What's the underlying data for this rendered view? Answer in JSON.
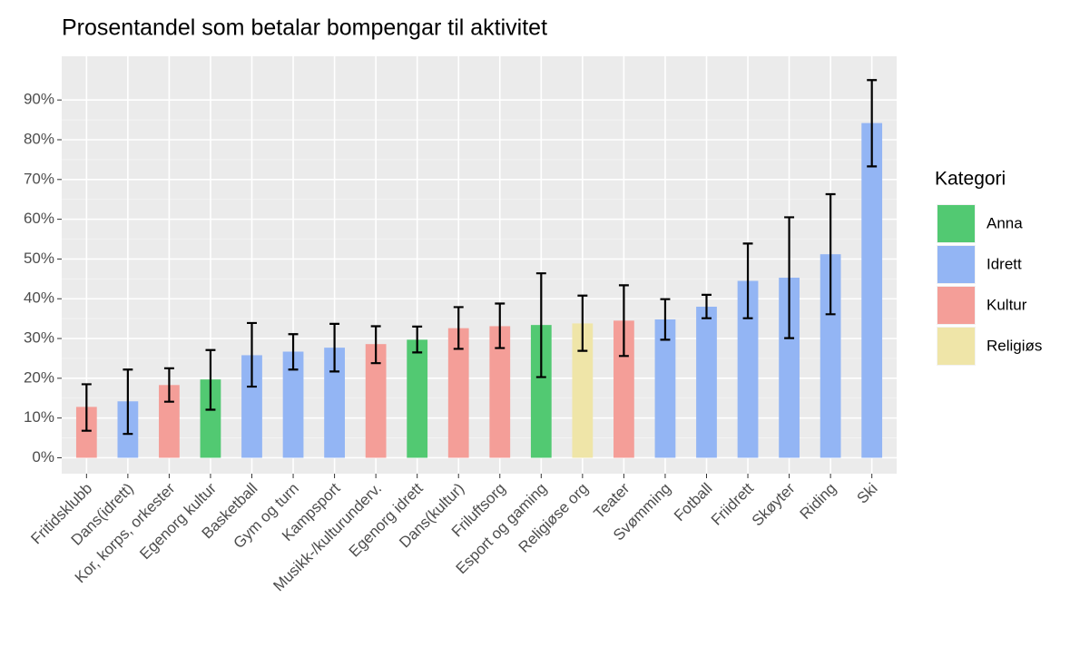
{
  "chart_data": {
    "type": "bar",
    "title": "Prosentandel som betalar bompengar til aktivitet",
    "categories": [
      "Fritidsklubb",
      "Dans(idrett)",
      "Kor, korps, orkester",
      "Egenorg kultur",
      "Basketball",
      "Gym og turn",
      "Kampsport",
      "Musikk-/kulturunderv.",
      "Egenorg idrett",
      "Dans(kultur)",
      "Friluftsorg",
      "Esport og gaming",
      "Religiøse org",
      "Teater",
      "Svømming",
      "Fotball",
      "Friidrett",
      "Skøyter",
      "Riding",
      "Ski"
    ],
    "values": [
      12.8,
      14.2,
      18.3,
      19.7,
      25.8,
      26.7,
      27.7,
      28.6,
      29.7,
      32.6,
      33.1,
      33.4,
      33.8,
      34.5,
      34.8,
      38.0,
      44.5,
      45.3,
      51.2,
      84.2
    ],
    "lower": [
      6.8,
      6.0,
      14.1,
      12.1,
      17.9,
      22.2,
      21.7,
      23.8,
      26.5,
      27.4,
      27.6,
      20.3,
      26.9,
      25.6,
      29.7,
      35.1,
      35.1,
      30.1,
      36.1,
      73.3
    ],
    "upper": [
      18.5,
      22.2,
      22.5,
      27.1,
      33.9,
      31.1,
      33.7,
      33.1,
      33.0,
      37.9,
      38.8,
      46.4,
      40.8,
      43.4,
      39.9,
      41.0,
      53.9,
      60.5,
      66.3,
      95.0
    ],
    "groups": [
      "Kultur",
      "Idrett",
      "Kultur",
      "Anna",
      "Idrett",
      "Idrett",
      "Idrett",
      "Kultur",
      "Anna",
      "Kultur",
      "Kultur",
      "Anna",
      "Religiøs",
      "Kultur",
      "Idrett",
      "Idrett",
      "Idrett",
      "Idrett",
      "Idrett",
      "Idrett"
    ],
    "legend": {
      "title": "Kategori",
      "items": [
        {
          "name": "Anna",
          "color": "#52c972"
        },
        {
          "name": "Idrett",
          "color": "#93b5f4"
        },
        {
          "name": "Kultur",
          "color": "#f49e98"
        },
        {
          "name": "Religiøs",
          "color": "#efe5a8"
        }
      ]
    },
    "ylim": [
      -4,
      101
    ],
    "yticks": [
      {
        "value": 0,
        "label": "0%"
      },
      {
        "value": 10,
        "label": "10%"
      },
      {
        "value": 20,
        "label": "20%"
      },
      {
        "value": 30,
        "label": "30%"
      },
      {
        "value": 40,
        "label": "40%"
      },
      {
        "value": 50,
        "label": "50%"
      },
      {
        "value": 60,
        "label": "60%"
      },
      {
        "value": 70,
        "label": "70%"
      },
      {
        "value": 80,
        "label": "80%"
      },
      {
        "value": 90,
        "label": "90%"
      }
    ],
    "grid": true
  }
}
